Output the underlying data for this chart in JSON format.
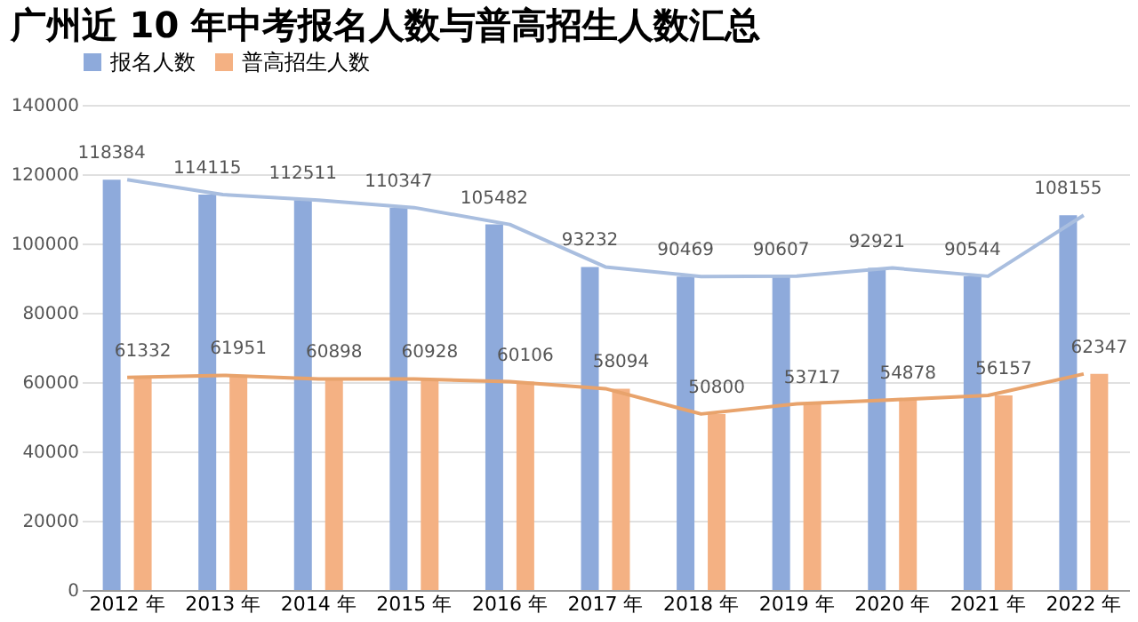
{
  "chart_data": {
    "type": "bar",
    "title": "广州近 10 年中考报名人数与普高招生人数汇总",
    "categories": [
      "2012 年",
      "2013 年",
      "2014 年",
      "2015 年",
      "2016 年",
      "2017 年",
      "2018 年",
      "2019 年",
      "2020 年",
      "2021 年",
      "2022 年"
    ],
    "series": [
      {
        "name": "报名人数",
        "color": "#8eaadb",
        "values": [
          118384,
          114115,
          112511,
          110347,
          105482,
          93232,
          90469,
          90607,
          92921,
          90544,
          108155
        ]
      },
      {
        "name": "普高招生人数",
        "color": "#f4b183",
        "values": [
          61332,
          61951,
          60898,
          60928,
          60106,
          58094,
          50800,
          53717,
          54878,
          56157,
          62347
        ]
      },
      {
        "type": "line",
        "color": "#a9bedf",
        "values": [
          118384,
          114115,
          112511,
          110347,
          105482,
          93232,
          90469,
          90607,
          92921,
          90544,
          108155
        ],
        "value_labels": [
          null,
          null,
          null,
          null,
          null,
          null,
          null,
          null,
          null,
          null,
          null
        ]
      },
      {
        "type": "line",
        "color": "#e8a36c",
        "values": [
          61332,
          61951,
          60898,
          60928,
          60106,
          58094,
          50800,
          53717,
          54878,
          56157,
          62347
        ],
        "value_labels": [
          null,
          null,
          null,
          null,
          null,
          null,
          null,
          null,
          null,
          null,
          null
        ]
      }
    ],
    "ylim": [
      0,
      140000
    ],
    "yticks": [
      0,
      20000,
      40000,
      60000,
      80000,
      100000,
      120000,
      140000
    ],
    "grid": "y",
    "legend": "top",
    "data_labels": true
  }
}
